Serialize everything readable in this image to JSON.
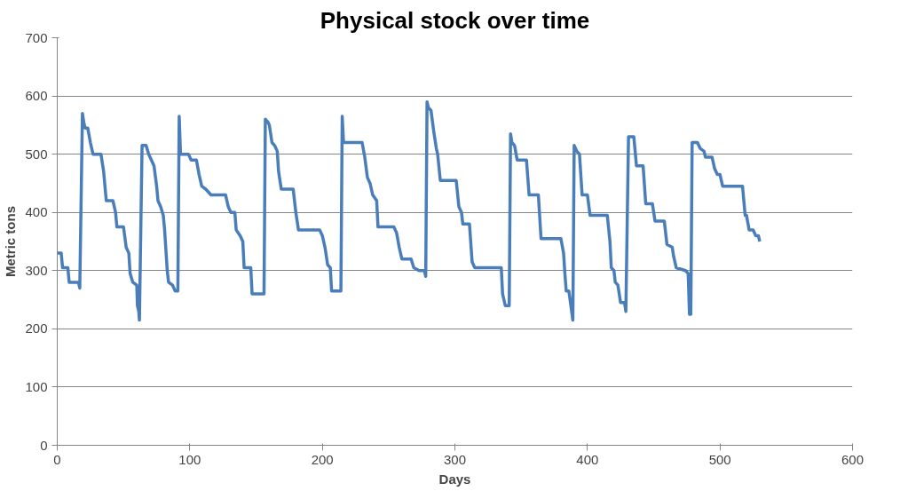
{
  "chart_data": {
    "type": "line",
    "title": "Physical stock over time",
    "xlabel": "Days",
    "ylabel": "Metric tons",
    "xlim": [
      0,
      600
    ],
    "xticks": [
      0,
      100,
      200,
      300,
      400,
      500,
      600
    ],
    "ylim": [
      0,
      700
    ],
    "yticks": [
      0,
      100,
      200,
      300,
      400,
      500,
      600,
      700
    ],
    "grid": "y",
    "marker": "none",
    "line_style": "solid",
    "series": [
      {
        "color": "#4a7ebb",
        "x": [
          0,
          3,
          4,
          8,
          9,
          16,
          17,
          19,
          20,
          21,
          23,
          25,
          27,
          33,
          35,
          37,
          42,
          44,
          45,
          50,
          52,
          54,
          55,
          57,
          60,
          60.5,
          61.5,
          62,
          64,
          67,
          69,
          71,
          73,
          75,
          76,
          78,
          80,
          81,
          83,
          84,
          87,
          89,
          91,
          92,
          93,
          99,
          101,
          105,
          107,
          109,
          112,
          116,
          127,
          129,
          131,
          134,
          135,
          138,
          140,
          141,
          146,
          147,
          156,
          157,
          159,
          160,
          162,
          164,
          166,
          167,
          169,
          178,
          180,
          182,
          198,
          200,
          202,
          204,
          206,
          207,
          214,
          215,
          216,
          230,
          232,
          234,
          236,
          238,
          241,
          242,
          254,
          256,
          258,
          260,
          267,
          269,
          273,
          277,
          278,
          279,
          280,
          282,
          284,
          286,
          287,
          289,
          301,
          303,
          305,
          306,
          311,
          313,
          315,
          335,
          336,
          338,
          341,
          342,
          343,
          345,
          347,
          354,
          356,
          363,
          365,
          380,
          382,
          383,
          384,
          386,
          389,
          390,
          392,
          394,
          396,
          400,
          402,
          415,
          417,
          418,
          420,
          421,
          423,
          425,
          428,
          429,
          431,
          435,
          437,
          442,
          444,
          449,
          451,
          458,
          460,
          464,
          465,
          467,
          474,
          476,
          477,
          478,
          479,
          483,
          485,
          488,
          489,
          494,
          496,
          498,
          500,
          502,
          517,
          519,
          520,
          522,
          525,
          527,
          529,
          530
        ],
        "values": [
          330,
          330,
          305,
          305,
          280,
          280,
          270,
          570,
          555,
          545,
          545,
          520,
          500,
          500,
          470,
          420,
          420,
          400,
          375,
          375,
          340,
          330,
          295,
          280,
          275,
          240,
          230,
          215,
          515,
          515,
          500,
          490,
          480,
          445,
          420,
          410,
          395,
          370,
          300,
          280,
          275,
          265,
          265,
          565,
          500,
          500,
          490,
          490,
          465,
          445,
          440,
          430,
          430,
          410,
          400,
          400,
          370,
          360,
          350,
          305,
          305,
          260,
          260,
          560,
          555,
          550,
          520,
          515,
          505,
          470,
          440,
          440,
          400,
          370,
          370,
          360,
          340,
          310,
          305,
          265,
          265,
          565,
          520,
          520,
          495,
          460,
          450,
          430,
          420,
          375,
          375,
          365,
          340,
          320,
          320,
          305,
          300,
          300,
          290,
          590,
          580,
          575,
          540,
          510,
          500,
          455,
          455,
          410,
          400,
          380,
          380,
          315,
          305,
          305,
          260,
          240,
          240,
          535,
          520,
          515,
          490,
          490,
          430,
          430,
          355,
          355,
          330,
          295,
          265,
          265,
          215,
          515,
          505,
          500,
          430,
          430,
          395,
          395,
          350,
          305,
          300,
          280,
          275,
          245,
          245,
          230,
          530,
          530,
          480,
          480,
          415,
          415,
          385,
          385,
          345,
          340,
          325,
          305,
          300,
          295,
          225,
          225,
          520,
          520,
          510,
          505,
          495,
          495,
          475,
          465,
          465,
          445,
          445,
          395,
          395,
          370,
          370,
          360,
          360,
          350
        ]
      }
    ]
  }
}
